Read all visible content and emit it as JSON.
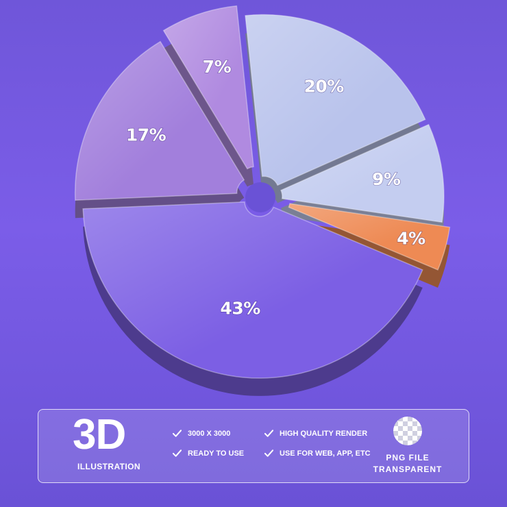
{
  "chart_data": {
    "type": "pie",
    "title": "",
    "slices": [
      {
        "label": "20%",
        "value": 20,
        "color": "#b9c3ec"
      },
      {
        "label": "9%",
        "value": 9,
        "color": "#c4cdf0"
      },
      {
        "label": "4%",
        "value": 4,
        "color": "#ee8a54"
      },
      {
        "label": "43%",
        "value": 43,
        "color": "#7c5fe4"
      },
      {
        "label": "17%",
        "value": 17,
        "color": "#a27fdc"
      },
      {
        "label": "7%",
        "value": 7,
        "color": "#b08ae0"
      }
    ]
  },
  "banner": {
    "title": "3D",
    "subtitle": "ILLUSTRATION",
    "features": [
      "3000 X 3000",
      "HIGH QUALITY RENDER",
      "READY TO USE",
      "USE FOR WEB, APP, ETC"
    ],
    "file_type_line1": "PNG FILE",
    "file_type_line2": "TRANSPARENT",
    "icons": [
      "check-icon",
      "transparency-checkerboard-icon"
    ]
  }
}
